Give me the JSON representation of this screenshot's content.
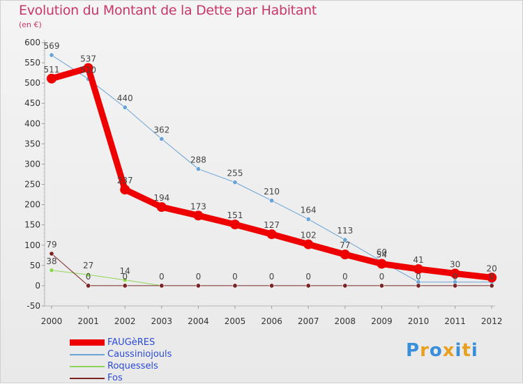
{
  "title": "Evolution du Montant de la Dette par Habitant",
  "subtitle": "(en €)",
  "logo": {
    "text": "Proxiti",
    "letters": [
      {
        "ch": "P",
        "color": "#3a8fd9"
      },
      {
        "ch": "r",
        "color": "#e8a020"
      },
      {
        "ch": "o",
        "color": "#3a8fd9"
      },
      {
        "ch": "x",
        "color": "#e8a020"
      },
      {
        "ch": "i",
        "color": "#3a8fd9"
      },
      {
        "ch": "t",
        "color": "#e8a020"
      },
      {
        "ch": "i",
        "color": "#3a8fd9"
      }
    ]
  },
  "chart_data": {
    "type": "line",
    "title": "Evolution du Montant de la Dette par Habitant",
    "subtitle": "(en €)",
    "x": [
      "2000",
      "2001",
      "2002",
      "2003",
      "2004",
      "2005",
      "2006",
      "2007",
      "2008",
      "2009",
      "2010",
      "2011",
      "2012"
    ],
    "ylim": [
      -50,
      600
    ],
    "yticks": [
      -50,
      0,
      50,
      100,
      150,
      200,
      250,
      300,
      350,
      400,
      450,
      500,
      550,
      600
    ],
    "grid": false,
    "legend_position": "bottom-left",
    "series": [
      {
        "name": "Caussiniojouls",
        "color": "#6aa3d6",
        "width": 1,
        "values": [
          569,
          510,
          440,
          362,
          288,
          255,
          210,
          164,
          113,
          60,
          9,
          9,
          9
        ],
        "labels": [
          "569",
          "510",
          "440",
          "362",
          "288",
          "255",
          "210",
          "164",
          "113",
          "60",
          "",
          "",
          ""
        ]
      },
      {
        "name": "Roquessels",
        "color": "#8fd45a",
        "width": 1,
        "values": [
          38,
          27,
          14,
          0,
          null,
          null,
          null,
          null,
          null,
          null,
          null,
          null,
          null
        ],
        "labels": [
          "38",
          "27",
          "14",
          "",
          "",
          "",
          "",
          "",
          "",
          "",
          "",
          "",
          ""
        ]
      },
      {
        "name": "Fos",
        "color": "#7a2424",
        "width": 1,
        "values": [
          79,
          0,
          0,
          0,
          0,
          0,
          0,
          0,
          0,
          0,
          0,
          0,
          0
        ],
        "labels": [
          "79",
          "0",
          "0",
          "0",
          "0",
          "0",
          "0",
          "0",
          "0",
          "0",
          "0",
          "0",
          "0"
        ]
      },
      {
        "name": "FAUGèRES",
        "color": "#ee0000",
        "width": 9,
        "values": [
          511,
          537,
          237,
          194,
          173,
          151,
          127,
          102,
          77,
          54,
          41,
          30,
          20
        ],
        "labels": [
          "511",
          "537",
          "237",
          "194",
          "173",
          "151",
          "127",
          "102",
          "77",
          "54",
          "41",
          "30",
          "20"
        ]
      }
    ],
    "legend_order": [
      "FAUGèRES",
      "Caussiniojouls",
      "Roquessels",
      "Fos"
    ]
  }
}
